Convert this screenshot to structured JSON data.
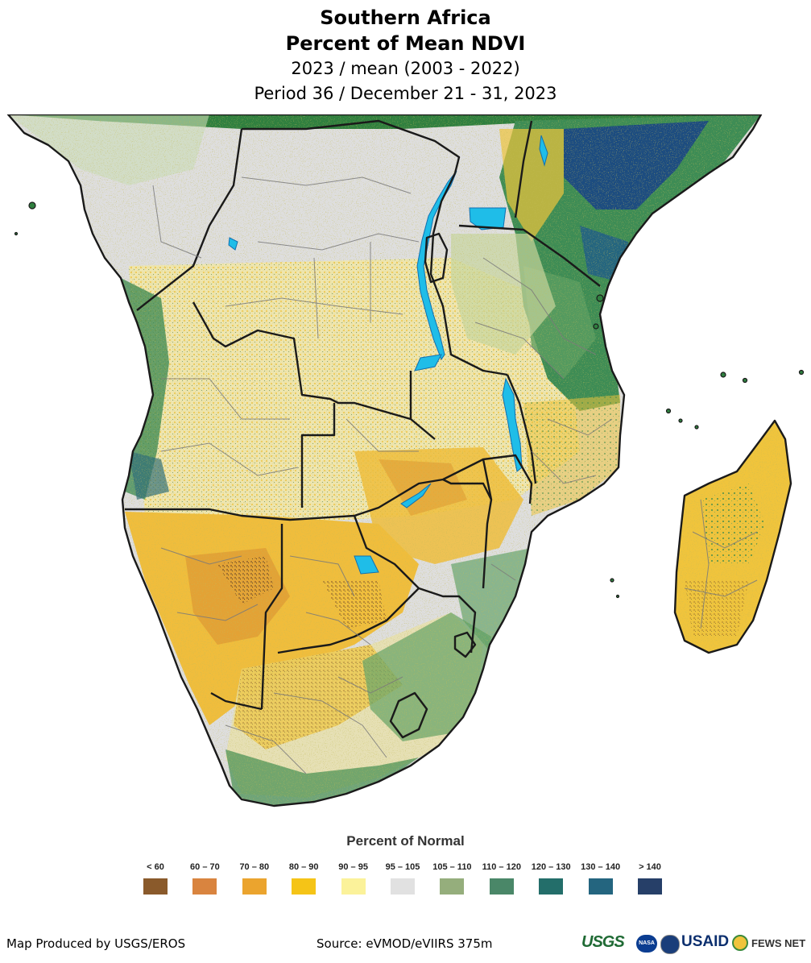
{
  "title": {
    "line1": "Southern Africa",
    "line2": "Percent of Mean NDVI",
    "line3": "2023 / mean (2003 - 2022)",
    "line4": "Period 36 / December 21 - 31, 2023"
  },
  "legend": {
    "title": "Percent of Normal",
    "classes": [
      {
        "label": "< 60",
        "color": "#8a5a2b"
      },
      {
        "label": "60 – 70",
        "color": "#d9843f"
      },
      {
        "label": "70 – 80",
        "color": "#eba42e"
      },
      {
        "label": "80 – 90",
        "color": "#f5c417"
      },
      {
        "label": "90 – 95",
        "color": "#fbf29a"
      },
      {
        "label": "95 – 105",
        "color": "#e1e1e1"
      },
      {
        "label": "105 – 110",
        "color": "#95ae7c"
      },
      {
        "label": "110 – 120",
        "color": "#4a8768"
      },
      {
        "label": "120 – 130",
        "color": "#236e6a"
      },
      {
        "label": "130 – 140",
        "color": "#24657f"
      },
      {
        "label": "> 140",
        "color": "#263f68"
      }
    ]
  },
  "footer": {
    "produced_by": "Map Produced by USGS/EROS",
    "source": "Source: eVMOD/eVIIRS 375m"
  },
  "logos": {
    "usgs": "USGS",
    "nasa": "NASA",
    "usaid": "USAID",
    "fewsnet": "FEWS NET"
  },
  "colors": {
    "water": "#1fbde8",
    "border": "#1a1a1a",
    "land_base": "#dedede"
  }
}
